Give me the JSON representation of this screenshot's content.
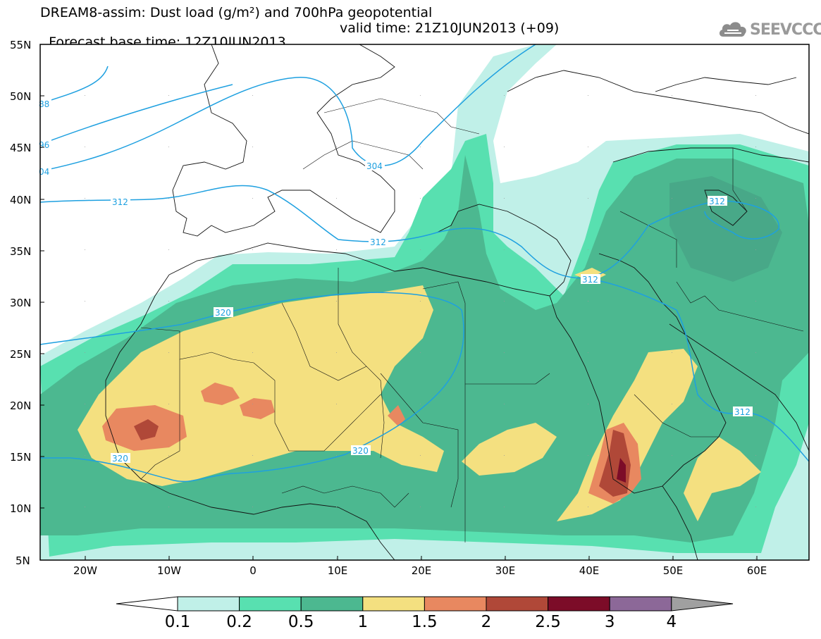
{
  "header": {
    "line1": "DREAM8-assim: Dust load (g/m²) and 700hPa geopotential",
    "line2_base": "Forecast base time: 12Z10JUN2013",
    "line2_valid": "valid time: 21Z10JUN2013 (+09)"
  },
  "logo": {
    "text": "SEEVCCC",
    "icon": "cloud-icon"
  },
  "map": {
    "lat_labels": [
      "55N",
      "50N",
      "45N",
      "40N",
      "35N",
      "30N",
      "25N",
      "20N",
      "15N",
      "10N",
      "5N"
    ],
    "lon_labels": [
      "20W",
      "10W",
      "0",
      "10E",
      "20E",
      "30E",
      "40E",
      "50E",
      "60E"
    ],
    "contour_labels": [
      "88",
      "96",
      "04",
      "304",
      "312",
      "312",
      "312",
      "312",
      "320",
      "320",
      "320",
      "312"
    ]
  },
  "colorbar": {
    "labels": [
      "0.1",
      "0.2",
      "0.5",
      "1",
      "1.5",
      "2",
      "2.5",
      "3",
      "4"
    ],
    "colors": [
      "#c0f0e8",
      "#58e0b0",
      "#4cb890",
      "#f4e080",
      "#e88860",
      "#b04838",
      "#7c0c28",
      "#8c6898"
    ],
    "under_color": "#ffffff",
    "over_color": "#a0a0a0"
  },
  "contour_color": "#1ea0e0"
}
